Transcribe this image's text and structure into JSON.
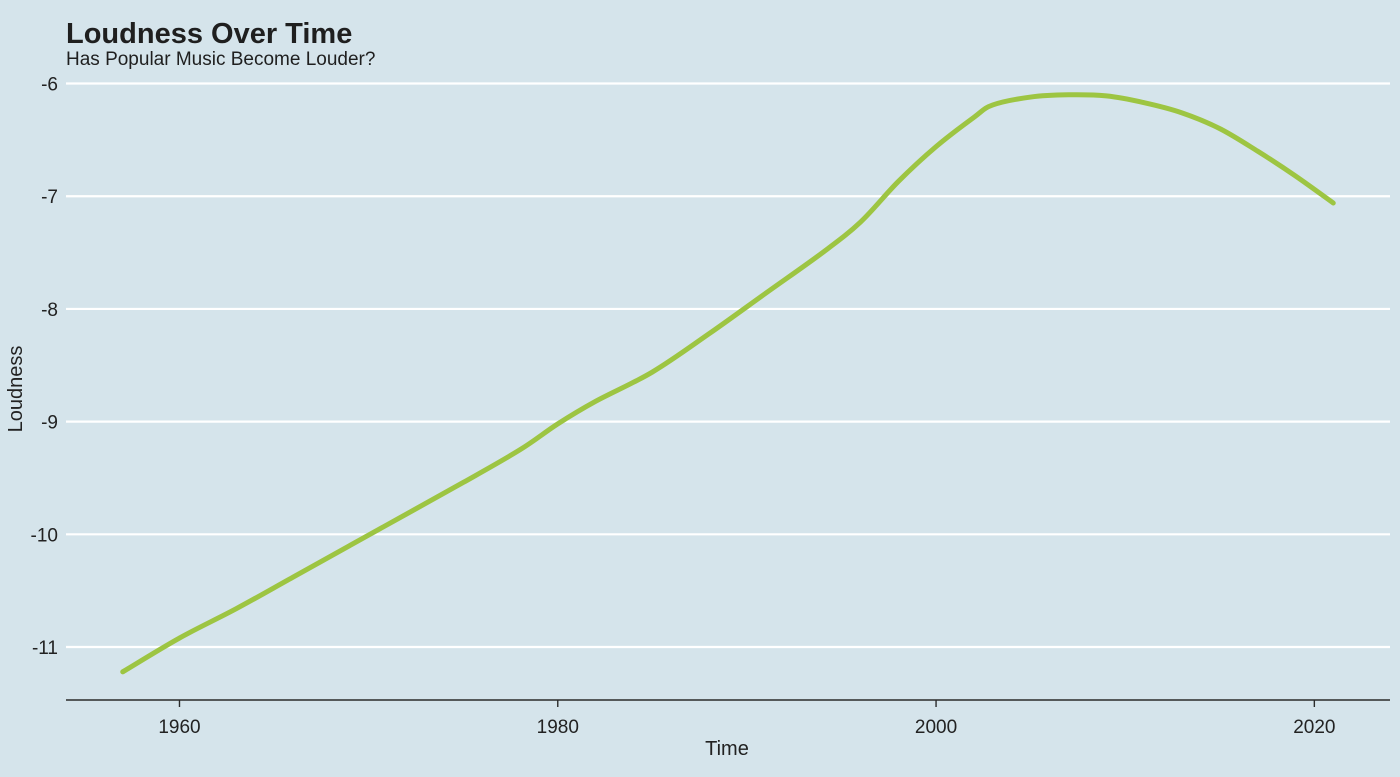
{
  "chart_data": {
    "type": "line",
    "title": "Loudness Over Time",
    "subtitle": "Has Popular Music Become Louder?",
    "xlabel": "Time",
    "ylabel": "Loudness",
    "xlim": [
      1954,
      2024
    ],
    "ylim": [
      -11.47,
      -5.88
    ],
    "x_ticks": [
      1960,
      1980,
      2000,
      2020
    ],
    "y_ticks": [
      -11,
      -10,
      -9,
      -8,
      -7,
      -6
    ],
    "grid": "horizontal",
    "legend": "none",
    "colors": {
      "background": "#d5e4eb",
      "line": "#9dc542",
      "grid": "#ffffff",
      "axis": "#2b2b2b"
    },
    "series": [
      {
        "x": [
          1957,
          1960,
          1963,
          1966,
          1969,
          1972,
          1975,
          1978,
          1980,
          1982,
          1985,
          1988,
          1991,
          1994,
          1996,
          1998,
          2000,
          2002,
          2003,
          2005,
          2007,
          2009,
          2011,
          2013,
          2015,
          2017,
          2019,
          2021
        ],
        "y": [
          -11.22,
          -10.92,
          -10.66,
          -10.38,
          -10.1,
          -9.82,
          -9.54,
          -9.25,
          -9.02,
          -8.82,
          -8.56,
          -8.22,
          -7.86,
          -7.5,
          -7.23,
          -6.87,
          -6.56,
          -6.3,
          -6.19,
          -6.12,
          -6.1,
          -6.11,
          -6.17,
          -6.26,
          -6.4,
          -6.6,
          -6.82,
          -7.06
        ]
      }
    ]
  }
}
